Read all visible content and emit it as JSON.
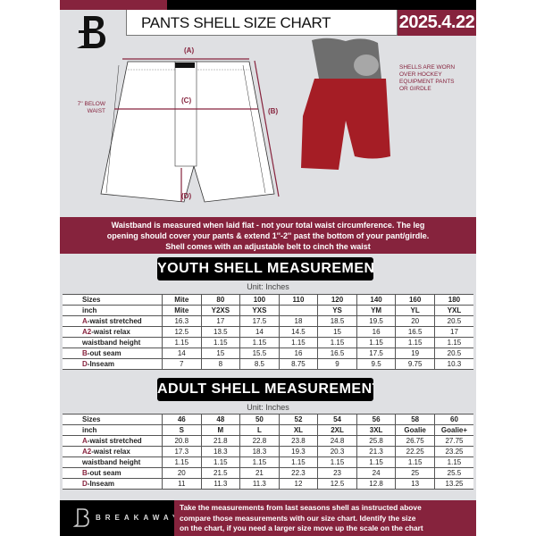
{
  "header": {
    "title": "PANTS SHELL SIZE CHART",
    "date": "2025.4.22"
  },
  "brand": {
    "name": "BREAKAWAY",
    "logo_letter": "B"
  },
  "diagram": {
    "label_a": "(A)",
    "label_b": "(B)",
    "label_c": "(C)",
    "label_d": "(D)",
    "below_waist_line1": "7'' BELOW",
    "below_waist_line2": "WAIST",
    "note": [
      "SHELLS ARE WORN",
      "OVER HOCKEY",
      "EQUIPMENT PANTS",
      "OR GIRDLE"
    ]
  },
  "banner": {
    "lines": [
      "Waistband is measured when laid flat - not your total waist circumference. The leg",
      "opening should cover your pants & extend 1''-2'' past the bottom of your pant/girdle.",
      "Shell comes with an adjustable belt to cinch the waist"
    ]
  },
  "youth": {
    "title": "YOUTH SHELL MEASUREMENTS",
    "unit": "Unit: Inches",
    "rows": [
      {
        "mark": "",
        "label": "Sizes",
        "cells": [
          "Mite",
          "80",
          "100",
          "110",
          "120",
          "140",
          "160",
          "180"
        ]
      },
      {
        "mark": "",
        "label": "inch",
        "cells": [
          "Mite",
          "Y2XS",
          "YXS",
          "",
          "YS",
          "YM",
          "YL",
          "YXL"
        ]
      },
      {
        "mark": "A",
        "label": "-waist stretched",
        "cells": [
          "16.3",
          "17",
          "17.5",
          "18",
          "18.5",
          "19.5",
          "20",
          "20.5"
        ]
      },
      {
        "mark": "A2",
        "label": "-waist relax",
        "cells": [
          "12.5",
          "13.5",
          "14",
          "14.5",
          "15",
          "16",
          "16.5",
          "17"
        ]
      },
      {
        "mark": "",
        "label": "waistband height",
        "cells": [
          "1.15",
          "1.15",
          "1.15",
          "1.15",
          "1.15",
          "1.15",
          "1.15",
          "1.15"
        ]
      },
      {
        "mark": "B",
        "label": "-out seam",
        "cells": [
          "14",
          "15",
          "15.5",
          "16",
          "16.5",
          "17.5",
          "19",
          "20.5"
        ]
      },
      {
        "mark": "D",
        "label": "-Inseam",
        "cells": [
          "7",
          "8",
          "8.5",
          "8.75",
          "9",
          "9.5",
          "9.75",
          "10.3"
        ]
      }
    ]
  },
  "adult": {
    "title": "ADULT SHELL MEASUREMENTS",
    "unit": "Unit: Inches",
    "rows": [
      {
        "mark": "",
        "label": "Sizes",
        "cells": [
          "46",
          "48",
          "50",
          "52",
          "54",
          "56",
          "58",
          "60"
        ]
      },
      {
        "mark": "",
        "label": "inch",
        "cells": [
          "S",
          "M",
          "L",
          "XL",
          "2XL",
          "3XL",
          "Goalie",
          "Goalie+"
        ]
      },
      {
        "mark": "A",
        "label": "-waist stretched",
        "cells": [
          "20.8",
          "21.8",
          "22.8",
          "23.8",
          "24.8",
          "25.8",
          "26.75",
          "27.75"
        ]
      },
      {
        "mark": "A2",
        "label": "-waist relax",
        "cells": [
          "17.3",
          "18.3",
          "18.3",
          "19.3",
          "20.3",
          "21.3",
          "22.25",
          "23.25"
        ]
      },
      {
        "mark": "",
        "label": "waistband height",
        "cells": [
          "1.15",
          "1.15",
          "1.15",
          "1.15",
          "1.15",
          "1.15",
          "1.15",
          "1.15"
        ]
      },
      {
        "mark": "B",
        "label": "-out seam",
        "cells": [
          "20",
          "21.5",
          "21",
          "22.3",
          "23",
          "24",
          "25",
          "25.5"
        ]
      },
      {
        "mark": "D",
        "label": "-Inseam",
        "cells": [
          "11",
          "11.3",
          "11.3",
          "12",
          "12.5",
          "12.8",
          "13",
          "13.25"
        ]
      }
    ]
  },
  "footer": {
    "lines": [
      "Take the measurements from last seasons shell as instructed above",
      "compare those measurements  with our size chart. Identify the size",
      "on the chart, if you need a larger size move up the scale on the chart"
    ]
  },
  "colors": {
    "accent": "#86233d",
    "background": "#dfe0e3",
    "dark": "#000000"
  }
}
